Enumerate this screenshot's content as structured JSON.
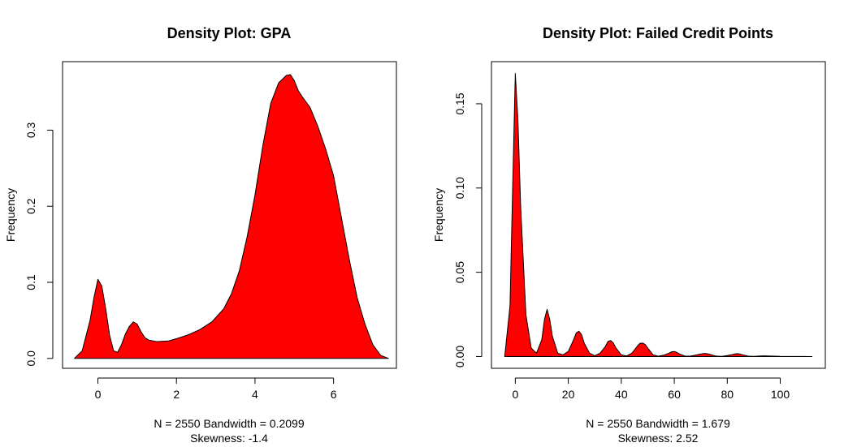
{
  "chart_data": [
    {
      "type": "area",
      "title": "Density Plot: GPA",
      "xlabel": "",
      "ylabel": "Frequency",
      "xlim": [
        -0.9,
        7.6
      ],
      "ylim": [
        -0.013,
        0.39
      ],
      "xticks": [
        0,
        2,
        4,
        6
      ],
      "yticks": [
        0.0,
        0.1,
        0.2,
        0.3
      ],
      "xtick_labels": [
        "0",
        "2",
        "4",
        "6"
      ],
      "ytick_labels": [
        "0.0",
        "0.1",
        "0.2",
        "0.3"
      ],
      "fill_color": "#ff0000",
      "stats_line1": "N = 2550   Bandwidth = 0.2099",
      "stats_line2": "Skewness: -1.4",
      "x": [
        -0.6,
        -0.4,
        -0.2,
        -0.1,
        0.0,
        0.1,
        0.2,
        0.3,
        0.4,
        0.5,
        0.6,
        0.7,
        0.8,
        0.9,
        1.0,
        1.1,
        1.2,
        1.3,
        1.5,
        1.8,
        2.0,
        2.3,
        2.6,
        2.9,
        3.2,
        3.4,
        3.6,
        3.8,
        4.0,
        4.2,
        4.4,
        4.6,
        4.8,
        4.9,
        5.0,
        5.1,
        5.2,
        5.4,
        5.6,
        5.8,
        6.0,
        6.2,
        6.4,
        6.6,
        6.8,
        7.0,
        7.2,
        7.4
      ],
      "y": [
        0.0,
        0.01,
        0.05,
        0.08,
        0.104,
        0.095,
        0.065,
        0.03,
        0.01,
        0.008,
        0.018,
        0.032,
        0.042,
        0.048,
        0.045,
        0.035,
        0.027,
        0.024,
        0.022,
        0.023,
        0.026,
        0.031,
        0.038,
        0.048,
        0.065,
        0.085,
        0.115,
        0.16,
        0.215,
        0.28,
        0.335,
        0.362,
        0.372,
        0.373,
        0.365,
        0.352,
        0.344,
        0.33,
        0.305,
        0.275,
        0.24,
        0.185,
        0.13,
        0.08,
        0.045,
        0.018,
        0.004,
        0.0
      ]
    },
    {
      "type": "area",
      "title": "Density Plot: Failed Credit Points",
      "xlabel": "",
      "ylabel": "Frequency",
      "xlim": [
        -9,
        117
      ],
      "ylim": [
        -0.007,
        0.175
      ],
      "xticks": [
        0,
        20,
        40,
        60,
        80,
        100
      ],
      "yticks": [
        0.0,
        0.05,
        0.1,
        0.15
      ],
      "xtick_labels": [
        "0",
        "20",
        "40",
        "60",
        "80",
        "100"
      ],
      "ytick_labels": [
        "0.00",
        "0.05",
        "0.10",
        "0.15"
      ],
      "fill_color": "#ff0000",
      "stats_line1": "N = 2550   Bandwidth = 1.679",
      "stats_line2": "Skewness: 2.52",
      "x": [
        -4,
        -2,
        -1,
        0,
        1,
        2,
        4,
        6,
        8,
        10,
        11,
        12,
        13,
        14,
        16,
        18,
        20,
        22,
        23,
        24,
        25,
        26,
        28,
        30,
        32,
        34,
        35,
        36,
        37,
        38,
        40,
        42,
        44,
        46,
        47,
        48,
        49,
        50,
        52,
        54,
        56,
        58,
        59,
        60,
        61,
        62,
        64,
        66,
        68,
        70,
        71,
        72,
        73,
        74,
        76,
        78,
        80,
        82,
        83,
        84,
        85,
        86,
        88,
        90,
        92,
        94,
        96,
        98,
        100,
        104,
        108,
        112
      ],
      "y": [
        0.0,
        0.03,
        0.1,
        0.168,
        0.14,
        0.09,
        0.025,
        0.005,
        0.002,
        0.01,
        0.022,
        0.028,
        0.022,
        0.012,
        0.002,
        0.001,
        0.003,
        0.01,
        0.014,
        0.015,
        0.013,
        0.008,
        0.002,
        0.0005,
        0.002,
        0.006,
        0.009,
        0.0095,
        0.008,
        0.005,
        0.001,
        0.0003,
        0.002,
        0.006,
        0.0078,
        0.008,
        0.0072,
        0.005,
        0.001,
        0.0002,
        0.0008,
        0.002,
        0.0028,
        0.003,
        0.0024,
        0.0015,
        0.0003,
        0.0002,
        0.0008,
        0.0015,
        0.0018,
        0.0018,
        0.0015,
        0.001,
        0.0002,
        0.0001,
        0.0006,
        0.0012,
        0.0016,
        0.0017,
        0.0014,
        0.0009,
        0.0002,
        0.0001,
        0.0003,
        0.0004,
        0.0003,
        0.0002,
        0.0001,
        5e-05,
        2e-05,
        0.0
      ]
    }
  ]
}
